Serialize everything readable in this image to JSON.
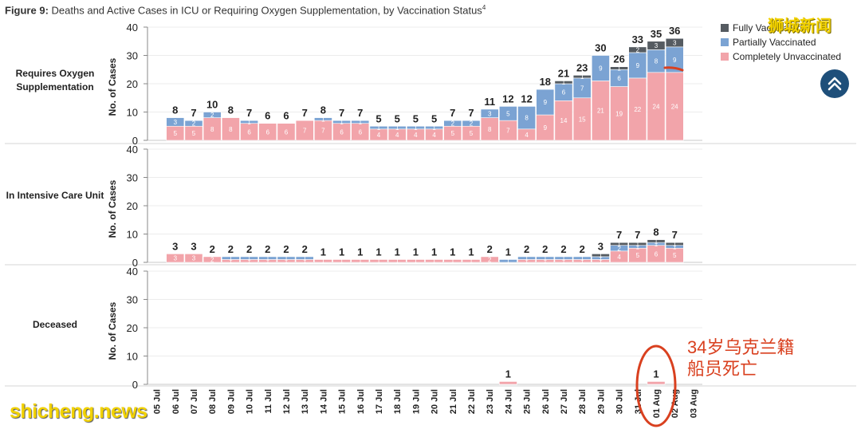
{
  "figure": {
    "label": "Figure 9:",
    "title": "Deaths and Active Cases in ICU or Requiring Oxygen Supplementation, by Vaccination Status",
    "footnote": "4"
  },
  "legend": [
    {
      "name": "Fully Vaccinated",
      "color": "#555b61"
    },
    {
      "name": "Partially Vaccinated",
      "color": "#7ba3d3"
    },
    {
      "name": "Completely Unvaccinated",
      "color": "#f2a4aa"
    }
  ],
  "watermarks": {
    "top_right": "狮城新闻",
    "bottom_left": "shicheng.news"
  },
  "annotation": {
    "line1": "34岁乌克兰籍",
    "line2": "船员死亡",
    "color": "#d9401f"
  },
  "scroll_top_icon": "double-chevron-up-icon",
  "chart_data": {
    "type": "bar",
    "stacked": true,
    "categories": [
      "05 Jul",
      "06 Jul",
      "07 Jul",
      "08 Jul",
      "09 Jul",
      "10 Jul",
      "11 Jul",
      "12 Jul",
      "13 Jul",
      "14 Jul",
      "15 Jul",
      "16 Jul",
      "17 Jul",
      "18 Jul",
      "19 Jul",
      "20 Jul",
      "21 Jul",
      "22 Jul",
      "23 Jul",
      "24 Jul",
      "25 Jul",
      "26 Jul",
      "27 Jul",
      "28 Jul",
      "29 Jul",
      "30 Jul",
      "31 Jul",
      "01 Aug",
      "02 Aug",
      "03 Aug"
    ],
    "ylabel": "No. of Cases",
    "ylim": [
      0,
      40
    ],
    "yticks": [
      0,
      10,
      20,
      30,
      40
    ],
    "panels": [
      {
        "name": "Requires Oxygen Supplementation",
        "totals": [
          null,
          8,
          7,
          10,
          8,
          7,
          6,
          6,
          7,
          8,
          7,
          7,
          5,
          5,
          5,
          5,
          7,
          7,
          11,
          12,
          12,
          18,
          21,
          23,
          30,
          26,
          33,
          35,
          36,
          null
        ],
        "series": [
          {
            "name": "Completely Unvaccinated",
            "values": [
              0,
              5,
              5,
              8,
              8,
              6,
              6,
              6,
              7,
              7,
              6,
              6,
              4,
              4,
              4,
              4,
              5,
              5,
              8,
              7,
              4,
              9,
              14,
              15,
              21,
              19,
              22,
              24,
              24,
              0
            ]
          },
          {
            "name": "Partially Vaccinated",
            "values": [
              0,
              3,
              2,
              2,
              0,
              1,
              0,
              0,
              0,
              1,
              1,
              1,
              1,
              1,
              1,
              1,
              2,
              2,
              3,
              5,
              8,
              9,
              6,
              7,
              9,
              6,
              9,
              8,
              9,
              0
            ]
          },
          {
            "name": "Fully Vaccinated",
            "values": [
              0,
              0,
              0,
              0,
              0,
              0,
              0,
              0,
              0,
              0,
              0,
              0,
              0,
              0,
              0,
              0,
              0,
              0,
              0,
              0,
              0,
              0,
              1,
              1,
              0,
              1,
              2,
              3,
              3,
              0
            ]
          }
        ]
      },
      {
        "name": "In Intensive Care Unit",
        "totals": [
          null,
          3,
          3,
          2,
          2,
          2,
          2,
          2,
          2,
          1,
          1,
          1,
          1,
          1,
          1,
          1,
          1,
          1,
          2,
          1,
          2,
          2,
          2,
          2,
          3,
          7,
          7,
          8,
          7,
          null
        ],
        "series": [
          {
            "name": "Completely Unvaccinated",
            "values": [
              0,
              3,
              3,
              2,
              1,
              1,
              1,
              1,
              1,
              1,
              1,
              1,
              1,
              1,
              1,
              1,
              1,
              1,
              2,
              0,
              1,
              1,
              1,
              1,
              1,
              4,
              5,
              6,
              5,
              0
            ]
          },
          {
            "name": "Partially Vaccinated",
            "values": [
              0,
              0,
              0,
              0,
              1,
              1,
              1,
              1,
              1,
              0,
              0,
              0,
              0,
              0,
              0,
              0,
              0,
              0,
              0,
              1,
              1,
              1,
              1,
              1,
              1,
              2,
              1,
              1,
              1,
              0
            ]
          },
          {
            "name": "Fully Vaccinated",
            "values": [
              0,
              0,
              0,
              0,
              0,
              0,
              0,
              0,
              0,
              0,
              0,
              0,
              0,
              0,
              0,
              0,
              0,
              0,
              0,
              0,
              0,
              0,
              0,
              0,
              1,
              1,
              1,
              1,
              1,
              0
            ]
          }
        ]
      },
      {
        "name": "Deceased",
        "totals": [
          null,
          null,
          null,
          null,
          null,
          null,
          null,
          null,
          null,
          null,
          null,
          null,
          null,
          null,
          null,
          null,
          null,
          null,
          null,
          1,
          null,
          null,
          null,
          null,
          null,
          null,
          null,
          1,
          null,
          null
        ],
        "series": [
          {
            "name": "Completely Unvaccinated",
            "values": [
              0,
              0,
              0,
              0,
              0,
              0,
              0,
              0,
              0,
              0,
              0,
              0,
              0,
              0,
              0,
              0,
              0,
              0,
              0,
              1,
              0,
              0,
              0,
              0,
              0,
              0,
              0,
              1,
              0,
              0
            ]
          },
          {
            "name": "Partially Vaccinated",
            "values": [
              0,
              0,
              0,
              0,
              0,
              0,
              0,
              0,
              0,
              0,
              0,
              0,
              0,
              0,
              0,
              0,
              0,
              0,
              0,
              0,
              0,
              0,
              0,
              0,
              0,
              0,
              0,
              0,
              0,
              0
            ]
          },
          {
            "name": "Fully Vaccinated",
            "values": [
              0,
              0,
              0,
              0,
              0,
              0,
              0,
              0,
              0,
              0,
              0,
              0,
              0,
              0,
              0,
              0,
              0,
              0,
              0,
              0,
              0,
              0,
              0,
              0,
              0,
              0,
              0,
              0,
              0,
              0
            ]
          }
        ]
      }
    ]
  }
}
